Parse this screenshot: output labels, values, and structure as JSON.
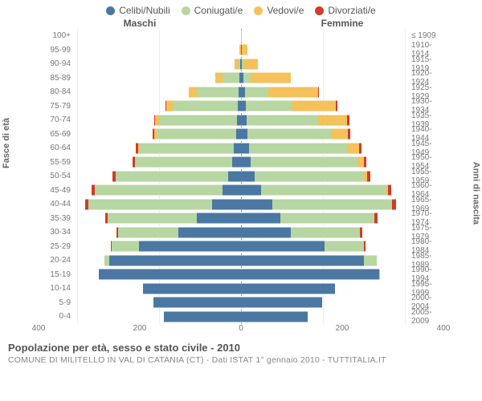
{
  "legend": [
    {
      "label": "Celibi/Nubili",
      "color": "#4a78a2"
    },
    {
      "label": "Coniugati/e",
      "color": "#b7d6a1"
    },
    {
      "label": "Vedovi/e",
      "color": "#f4c15a"
    },
    {
      "label": "Divorziati/e",
      "color": "#d23a2a"
    }
  ],
  "side_labels": {
    "male": "Maschi",
    "female": "Femmine"
  },
  "y_left_title": "Fasce di età",
  "y_right_title": "Anni di nascita",
  "x_axis": {
    "max": 400,
    "ticks": [
      400,
      200,
      0,
      200,
      400
    ]
  },
  "footer": {
    "title": "Popolazione per età, sesso e stato civile - 2010",
    "sub": "COMUNE DI MILITELLO IN VAL DI CATANIA (CT) - Dati ISTAT 1° gennaio 2010 - TUTTITALIA.IT"
  },
  "colors": {
    "single": "#4a78a2",
    "married": "#b7d6a1",
    "widowed": "#f4c15a",
    "divorced": "#d23a2a",
    "grid": "#eeeeee",
    "center": "#999999"
  },
  "rows": [
    {
      "age": "100+",
      "birth": "≤ 1909",
      "m": [
        0,
        0,
        0,
        0
      ],
      "f": [
        0,
        0,
        2,
        0
      ]
    },
    {
      "age": "95-99",
      "birth": "1910-1914",
      "m": [
        0,
        0,
        3,
        0
      ],
      "f": [
        1,
        0,
        14,
        0
      ]
    },
    {
      "age": "90-94",
      "birth": "1915-1919",
      "m": [
        1,
        4,
        10,
        0
      ],
      "f": [
        2,
        3,
        35,
        0
      ]
    },
    {
      "age": "85-89",
      "birth": "1920-1924",
      "m": [
        4,
        40,
        18,
        0
      ],
      "f": [
        6,
        18,
        95,
        0
      ]
    },
    {
      "age": "80-84",
      "birth": "1925-1929",
      "m": [
        6,
        100,
        20,
        0
      ],
      "f": [
        10,
        55,
        120,
        2
      ]
    },
    {
      "age": "75-79",
      "birth": "1930-1934",
      "m": [
        8,
        155,
        15,
        2
      ],
      "f": [
        12,
        110,
        105,
        4
      ]
    },
    {
      "age": "70-74",
      "birth": "1935-1939",
      "m": [
        10,
        185,
        10,
        3
      ],
      "f": [
        14,
        170,
        70,
        5
      ]
    },
    {
      "age": "65-69",
      "birth": "1940-1944",
      "m": [
        12,
        190,
        6,
        3
      ],
      "f": [
        16,
        200,
        40,
        5
      ]
    },
    {
      "age": "60-64",
      "birth": "1945-1949",
      "m": [
        18,
        225,
        4,
        4
      ],
      "f": [
        20,
        235,
        28,
        6
      ]
    },
    {
      "age": "55-59",
      "birth": "1950-1954",
      "m": [
        22,
        230,
        2,
        5
      ],
      "f": [
        24,
        255,
        15,
        6
      ]
    },
    {
      "age": "50-54",
      "birth": "1955-1959",
      "m": [
        30,
        270,
        1,
        6
      ],
      "f": [
        32,
        262,
        8,
        7
      ]
    },
    {
      "age": "45-49",
      "birth": "1960-1964",
      "m": [
        45,
        305,
        0,
        7
      ],
      "f": [
        48,
        300,
        4,
        8
      ]
    },
    {
      "age": "40-44",
      "birth": "1965-1969",
      "m": [
        70,
        295,
        0,
        8
      ],
      "f": [
        75,
        285,
        2,
        9
      ]
    },
    {
      "age": "35-39",
      "birth": "1970-1974",
      "m": [
        105,
        215,
        0,
        6
      ],
      "f": [
        95,
        225,
        0,
        7
      ]
    },
    {
      "age": "30-34",
      "birth": "1975-1979",
      "m": [
        150,
        145,
        0,
        4
      ],
      "f": [
        120,
        165,
        0,
        5
      ]
    },
    {
      "age": "25-29",
      "birth": "1980-1984",
      "m": [
        245,
        65,
        0,
        2
      ],
      "f": [
        200,
        95,
        0,
        3
      ]
    },
    {
      "age": "20-24",
      "birth": "1985-1989",
      "m": [
        315,
        12,
        0,
        0
      ],
      "f": [
        295,
        30,
        0,
        0
      ]
    },
    {
      "age": "15-19",
      "birth": "1990-1994",
      "m": [
        340,
        0,
        0,
        0
      ],
      "f": [
        330,
        3,
        0,
        0
      ]
    },
    {
      "age": "10-14",
      "birth": "1995-1999",
      "m": [
        235,
        0,
        0,
        0
      ],
      "f": [
        225,
        0,
        0,
        0
      ]
    },
    {
      "age": "5-9",
      "birth": "2000-2004",
      "m": [
        210,
        0,
        0,
        0
      ],
      "f": [
        195,
        0,
        0,
        0
      ]
    },
    {
      "age": "0-4",
      "birth": "2005-2009",
      "m": [
        185,
        0,
        0,
        0
      ],
      "f": [
        160,
        0,
        0,
        0
      ]
    }
  ]
}
